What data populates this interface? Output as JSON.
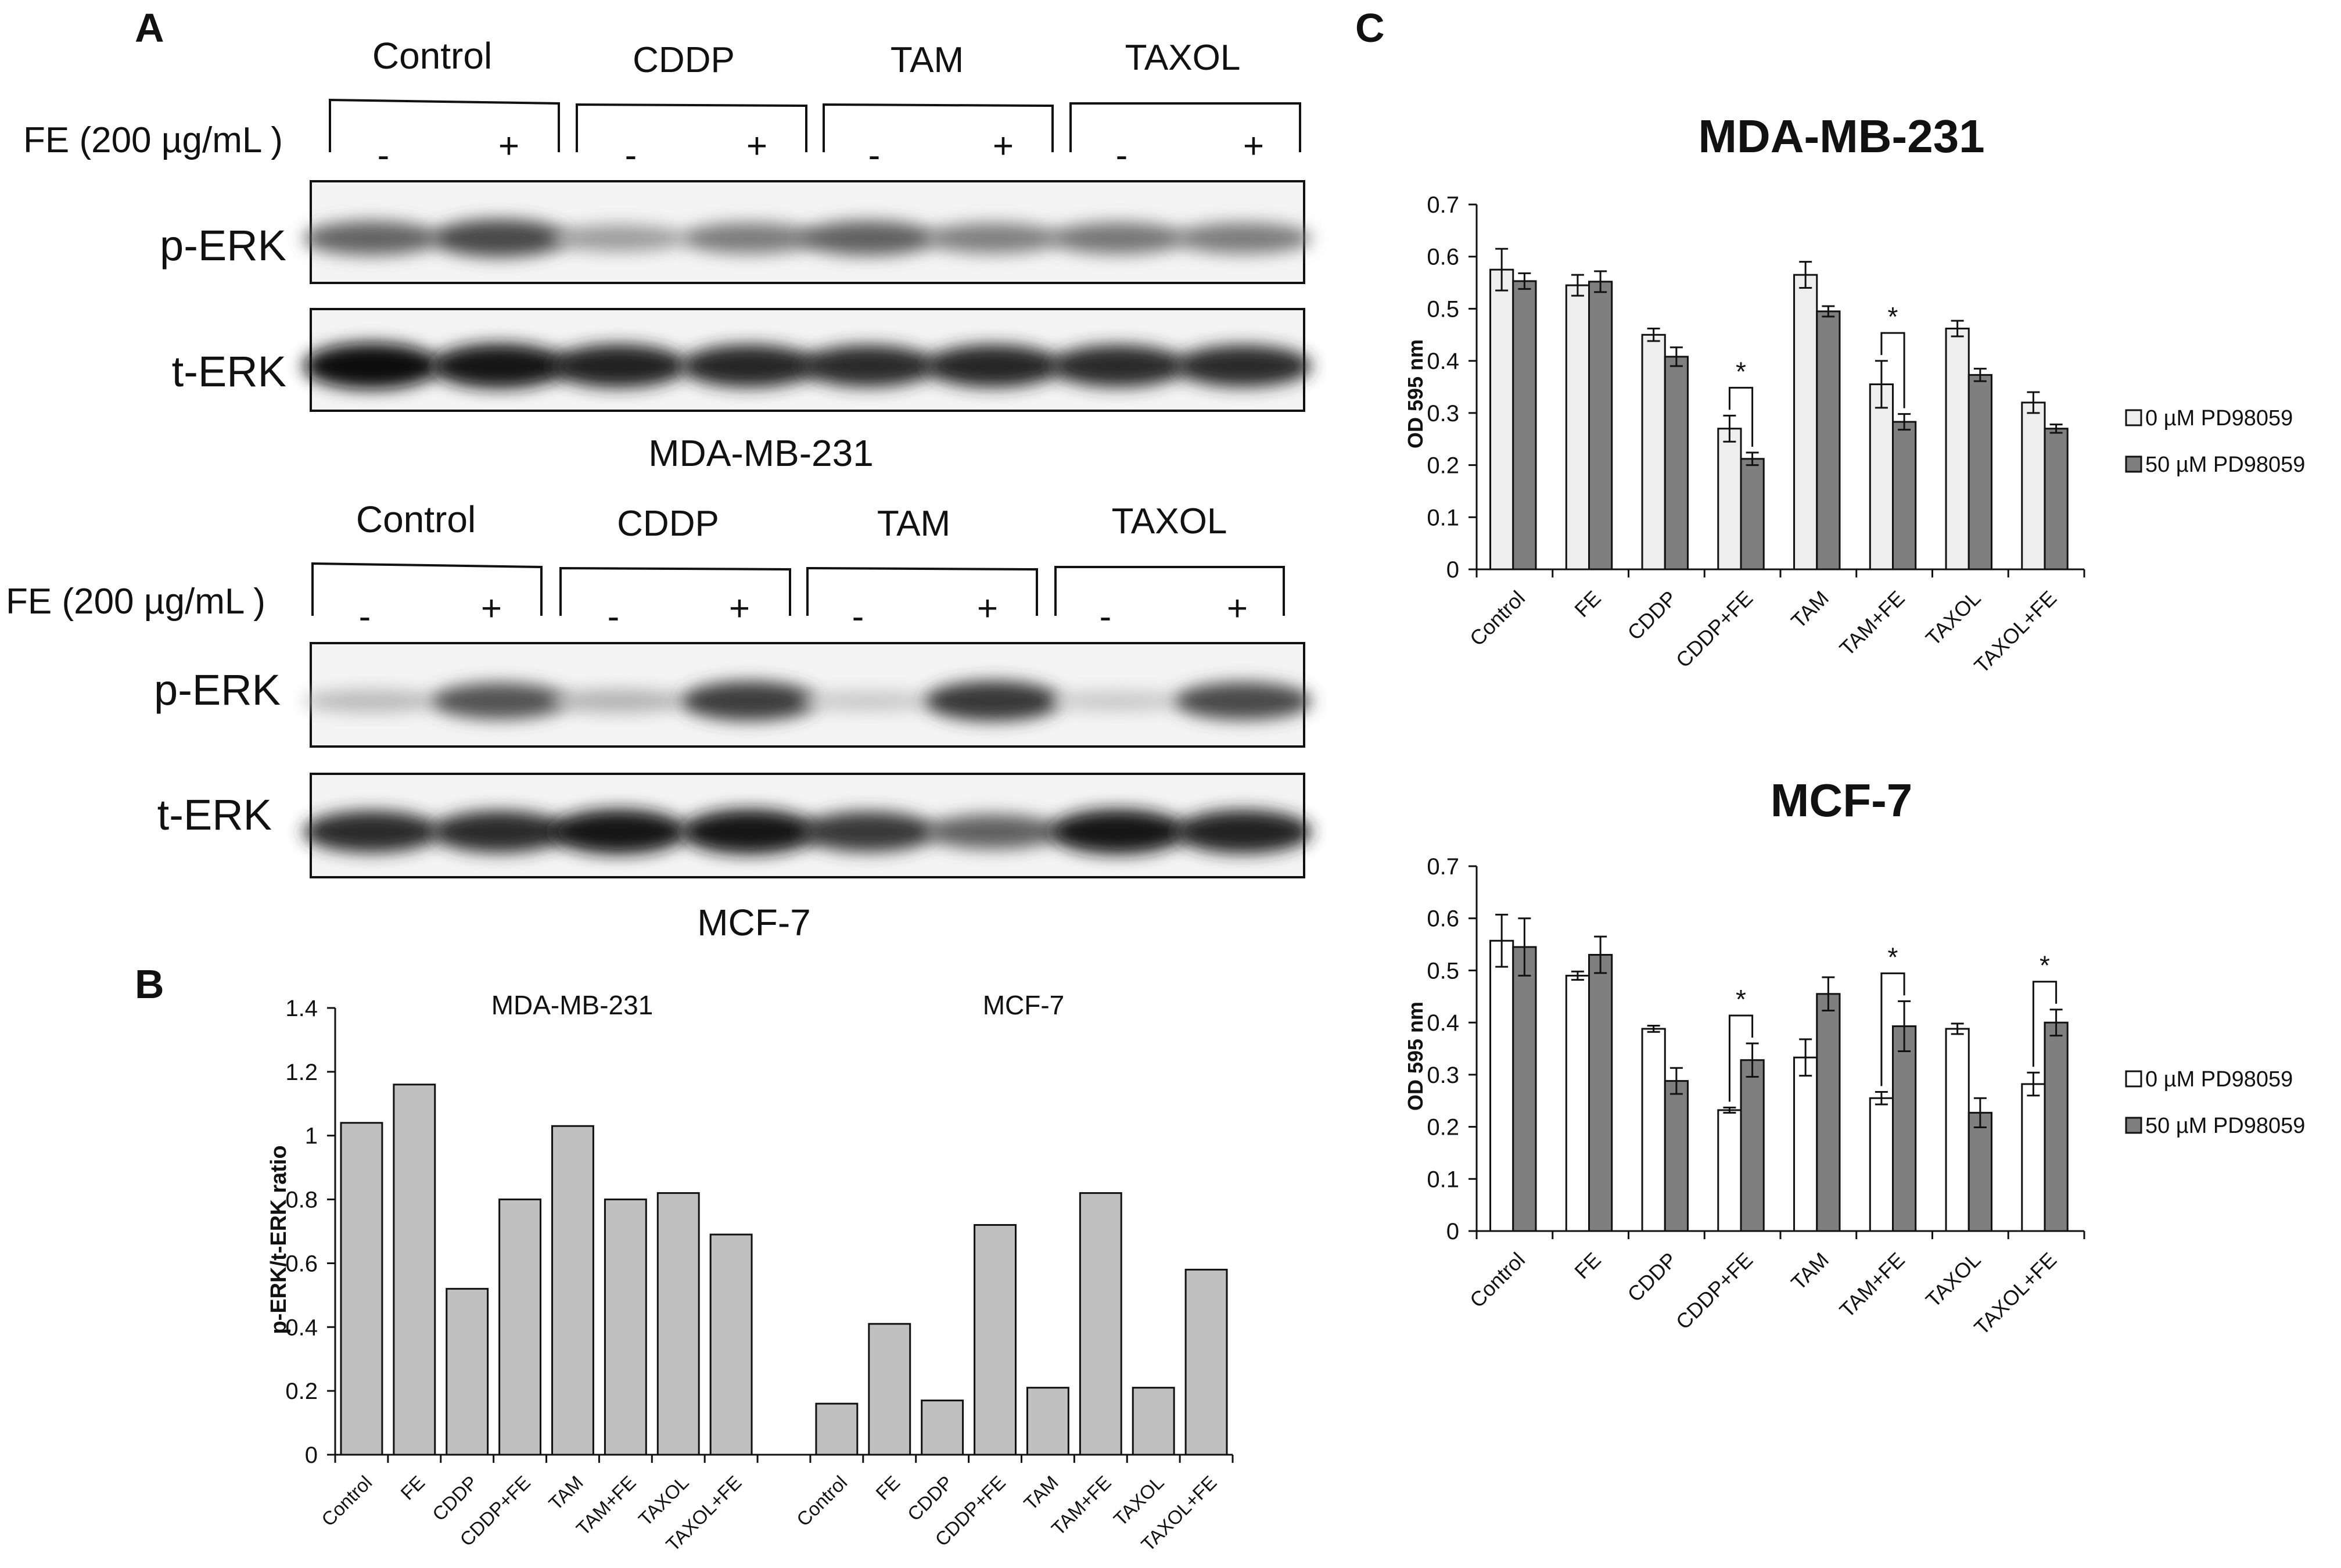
{
  "panels": {
    "a": "A",
    "b": "B",
    "c": "C"
  },
  "western_blot": [
    {
      "cell_line": "MDA-MB-231",
      "fe_label": "FE (200 µg/mL )",
      "groups": [
        "Control",
        "CDDP",
        "TAM",
        "TAXOL"
      ],
      "signs": [
        "-",
        "+",
        "-",
        "+",
        "-",
        "+",
        "-",
        "+"
      ],
      "rows": [
        {
          "label": "p-ERK",
          "intensity": [
            0.6,
            0.72,
            0.35,
            0.5,
            0.62,
            0.48,
            0.52,
            0.5
          ]
        },
        {
          "label": "t-ERK",
          "intensity": [
            1.0,
            0.95,
            0.9,
            0.88,
            0.85,
            0.88,
            0.86,
            0.85
          ]
        }
      ]
    },
    {
      "cell_line": "MCF-7",
      "fe_label": "FE (200 µg/mL )",
      "groups": [
        "Control",
        "CDDP",
        "TAM",
        "TAXOL"
      ],
      "signs": [
        "-",
        "+",
        "-",
        "+",
        "-",
        "+",
        "-",
        "+"
      ],
      "rows": [
        {
          "label": "p-ERK",
          "intensity": [
            0.22,
            0.68,
            0.25,
            0.78,
            0.15,
            0.8,
            0.15,
            0.72
          ]
        },
        {
          "label": "t-ERK",
          "intensity": [
            0.85,
            0.85,
            0.95,
            0.95,
            0.8,
            0.62,
            0.95,
            0.9
          ]
        }
      ]
    }
  ],
  "chart_data": [
    {
      "id": "B",
      "type": "bar",
      "title": "",
      "ylabel": "p-ERK/t-ERK ratio",
      "xlabel": "",
      "ylim": [
        0,
        1.4
      ],
      "yticks": [
        "0",
        "0.2",
        "0.4",
        "0.6",
        "0.8",
        "1",
        "1.2",
        "1.4"
      ],
      "groups": [
        {
          "name": "MDA-MB-231",
          "categories": [
            "Control",
            "FE",
            "CDDP",
            "CDDP+FE",
            "TAM",
            "TAM+FE",
            "TAXOL",
            "TAXOL+FE"
          ],
          "values": [
            1.04,
            1.16,
            0.52,
            0.8,
            1.03,
            0.8,
            0.82,
            0.69
          ]
        },
        {
          "name": "MCF-7",
          "categories": [
            "Control",
            "FE",
            "CDDP",
            "CDDP+FE",
            "TAM",
            "TAM+FE",
            "TAXOL",
            "TAXOL+FE"
          ],
          "values": [
            0.16,
            0.41,
            0.17,
            0.72,
            0.21,
            0.82,
            0.21,
            0.58
          ]
        }
      ],
      "color": "#c0c0c0"
    },
    {
      "id": "C-top",
      "type": "bar",
      "title": "MDA-MB-231",
      "ylabel": "OD 595 nm",
      "xlabel": "",
      "ylim": [
        0,
        0.7
      ],
      "yticks": [
        "0",
        "0.1",
        "0.2",
        "0.3",
        "0.4",
        "0.5",
        "0.6",
        "0.7"
      ],
      "categories": [
        "Control",
        "FE",
        "CDDP",
        "CDDP+FE",
        "TAM",
        "TAM+FE",
        "TAXOL",
        "TAXOL+FE"
      ],
      "series": [
        {
          "name": "0 µM PD98059",
          "color": "#eeeeee",
          "values": [
            0.575,
            0.545,
            0.45,
            0.27,
            0.565,
            0.355,
            0.462,
            0.32
          ],
          "errors": [
            0.04,
            0.02,
            0.012,
            0.025,
            0.025,
            0.045,
            0.015,
            0.02
          ]
        },
        {
          "name": "50 µM PD98059",
          "color": "#7f7f7f",
          "values": [
            0.553,
            0.552,
            0.408,
            0.212,
            0.495,
            0.283,
            0.373,
            0.27
          ],
          "errors": [
            0.015,
            0.02,
            0.018,
            0.012,
            0.01,
            0.015,
            0.012,
            0.008
          ]
        }
      ],
      "significance": [
        {
          "category": "CDDP+FE",
          "label": "*"
        },
        {
          "category": "TAM+FE",
          "label": "*"
        }
      ]
    },
    {
      "id": "C-bottom",
      "type": "bar",
      "title": "MCF-7",
      "ylabel": "OD 595 nm",
      "xlabel": "",
      "ylim": [
        0,
        0.7
      ],
      "yticks": [
        "0",
        "0.1",
        "0.2",
        "0.3",
        "0.4",
        "0.5",
        "0.6",
        "0.7"
      ],
      "categories": [
        "Control",
        "FE",
        "CDDP",
        "CDDP+FE",
        "TAM",
        "TAM+FE",
        "TAXOL",
        "TAXOL+FE"
      ],
      "series": [
        {
          "name": "0 µM PD98059",
          "color": "#ffffff",
          "values": [
            0.557,
            0.49,
            0.388,
            0.232,
            0.333,
            0.255,
            0.388,
            0.282
          ],
          "errors": [
            0.05,
            0.008,
            0.006,
            0.005,
            0.035,
            0.012,
            0.01,
            0.022
          ]
        },
        {
          "name": "50 µM PD98059",
          "color": "#7f7f7f",
          "values": [
            0.545,
            0.53,
            0.288,
            0.328,
            0.455,
            0.393,
            0.227,
            0.4
          ],
          "errors": [
            0.055,
            0.035,
            0.025,
            0.032,
            0.032,
            0.048,
            0.028,
            0.025
          ]
        }
      ],
      "significance": [
        {
          "category": "CDDP+FE",
          "label": "*"
        },
        {
          "category": "TAM+FE",
          "label": "*"
        },
        {
          "category": "TAXOL+FE",
          "label": "*"
        }
      ]
    }
  ]
}
